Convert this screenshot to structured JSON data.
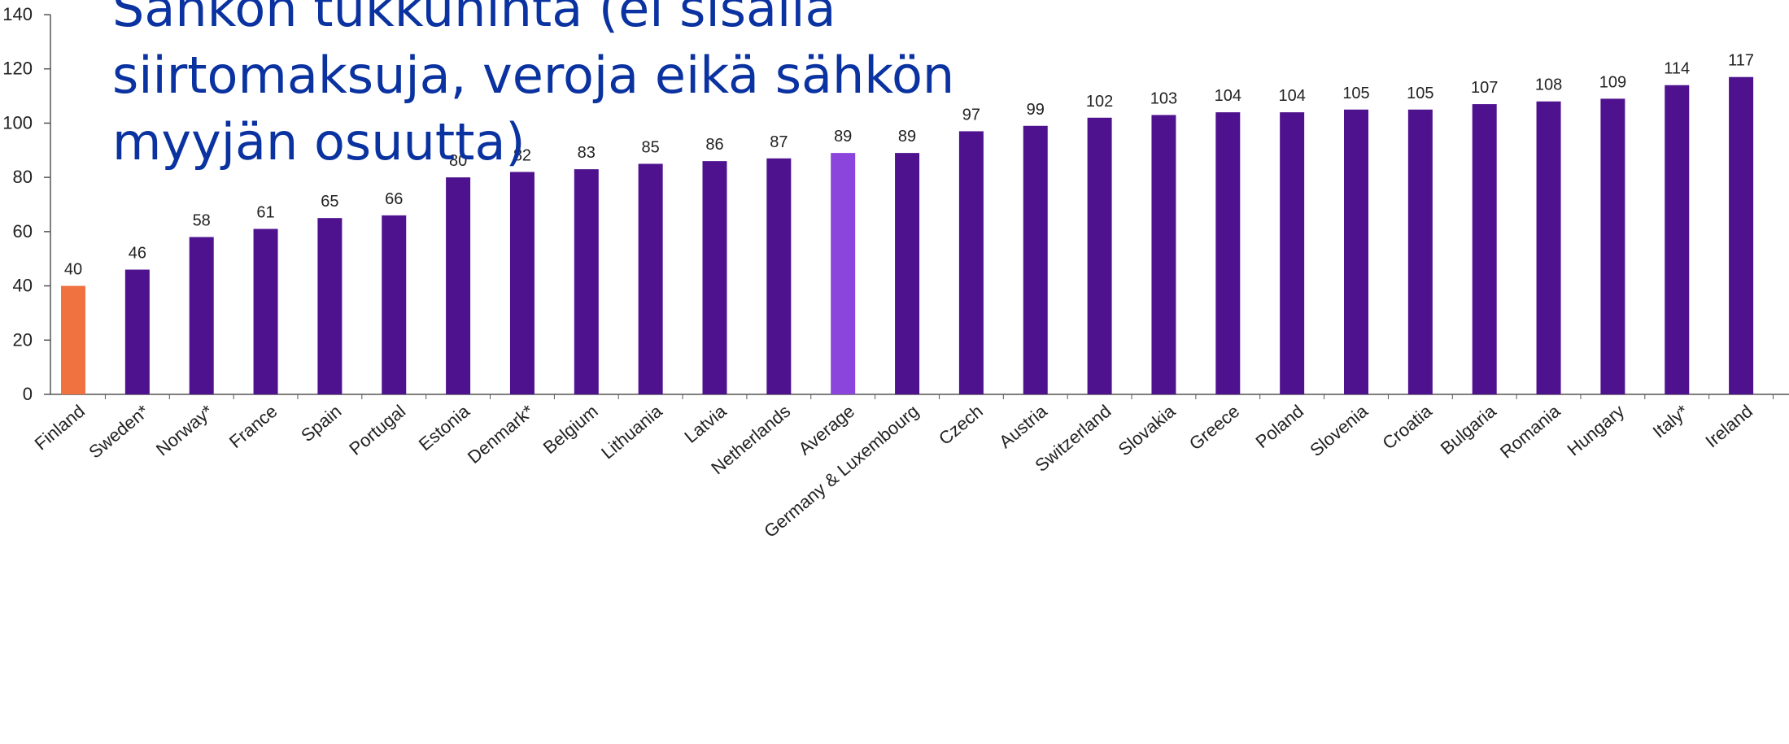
{
  "chart_data": {
    "type": "bar",
    "title": "Sähkön tukkuhinta (ei sisällä siirtomaksuja, veroja eikä sähkön myyjän osuutta)",
    "categories": [
      "Finland",
      "Sweden*",
      "Norway*",
      "France",
      "Spain",
      "Portugal",
      "Estonia",
      "Denmark*",
      "Belgium",
      "Lithuania",
      "Latvia",
      "Netherlands",
      "Average",
      "Germany & Luxembourg",
      "Czech",
      "Austria",
      "Switzerland",
      "Slovakia",
      "Greece",
      "Poland",
      "Slovenia",
      "Croatia",
      "Bulgaria",
      "Romania",
      "Hungary",
      "Italy*",
      "Ireland"
    ],
    "values": [
      40,
      46,
      58,
      61,
      65,
      66,
      80,
      82,
      83,
      85,
      86,
      87,
      89,
      89,
      97,
      99,
      102,
      103,
      104,
      104,
      105,
      105,
      107,
      108,
      109,
      114,
      117
    ],
    "colors": [
      "#f07240",
      "#4f128f",
      "#4f128f",
      "#4f128f",
      "#4f128f",
      "#4f128f",
      "#4f128f",
      "#4f128f",
      "#4f128f",
      "#4f128f",
      "#4f128f",
      "#4f128f",
      "#8b44dc",
      "#4f128f",
      "#4f128f",
      "#4f128f",
      "#4f128f",
      "#4f128f",
      "#4f128f",
      "#4f128f",
      "#4f128f",
      "#4f128f",
      "#4f128f",
      "#4f128f",
      "#4f128f",
      "#4f128f",
      "#4f128f"
    ],
    "ylim": [
      0,
      140
    ],
    "yticks": [
      0,
      20,
      40,
      60,
      80,
      100,
      120,
      140
    ],
    "grid": false
  }
}
